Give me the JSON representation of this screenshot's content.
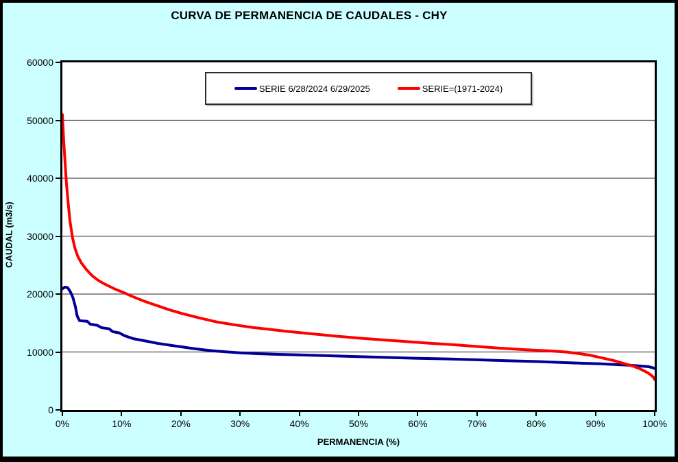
{
  "chart_data": {
    "type": "line",
    "title": "CURVA DE PERMANENCIA DE CAUDALES - CHY",
    "xlabel": "PERMANENCIA (%)",
    "ylabel": "CAUDAL (m3/s)",
    "xlim": [
      0,
      100
    ],
    "ylim": [
      0,
      60000
    ],
    "grid": "horizontal",
    "legend_position": "top-center",
    "background_color": "#CCFFFF",
    "plot_background": "#FFFFFF",
    "grid_color": "#4D4D4D",
    "x_ticks": [
      {
        "v": 0,
        "label": "0%"
      },
      {
        "v": 10,
        "label": "10%"
      },
      {
        "v": 20,
        "label": "20%"
      },
      {
        "v": 30,
        "label": "30%"
      },
      {
        "v": 40,
        "label": "40%"
      },
      {
        "v": 50,
        "label": "50%"
      },
      {
        "v": 60,
        "label": "60%"
      },
      {
        "v": 70,
        "label": "70%"
      },
      {
        "v": 80,
        "label": "80%"
      },
      {
        "v": 90,
        "label": "90%"
      },
      {
        "v": 100,
        "label": "100%"
      }
    ],
    "y_ticks": [
      {
        "v": 0,
        "label": "0"
      },
      {
        "v": 10000,
        "label": "10000"
      },
      {
        "v": 20000,
        "label": "20000"
      },
      {
        "v": 30000,
        "label": "30000"
      },
      {
        "v": 40000,
        "label": "40000"
      },
      {
        "v": 50000,
        "label": "50000"
      },
      {
        "v": 60000,
        "label": "60000"
      }
    ],
    "series": [
      {
        "name": "SERIE 6/28/2024 6/29/2025",
        "color": "#000099",
        "points": [
          [
            0,
            20900
          ],
          [
            0.4,
            21200
          ],
          [
            0.9,
            21100
          ],
          [
            1.4,
            20300
          ],
          [
            1.8,
            19300
          ],
          [
            2.2,
            17800
          ],
          [
            2.5,
            16200
          ],
          [
            2.9,
            15400
          ],
          [
            4.2,
            15300
          ],
          [
            4.7,
            14800
          ],
          [
            5.9,
            14600
          ],
          [
            6.6,
            14200
          ],
          [
            7.9,
            14000
          ],
          [
            8.5,
            13500
          ],
          [
            9.6,
            13300
          ],
          [
            10.5,
            12800
          ],
          [
            12,
            12300
          ],
          [
            14,
            11900
          ],
          [
            16,
            11500
          ],
          [
            18,
            11200
          ],
          [
            20,
            10900
          ],
          [
            22,
            10600
          ],
          [
            24,
            10350
          ],
          [
            26,
            10150
          ],
          [
            28,
            10000
          ],
          [
            30,
            9850
          ],
          [
            33,
            9700
          ],
          [
            36,
            9600
          ],
          [
            40,
            9500
          ],
          [
            45,
            9350
          ],
          [
            50,
            9200
          ],
          [
            55,
            9050
          ],
          [
            60,
            8900
          ],
          [
            65,
            8800
          ],
          [
            70,
            8650
          ],
          [
            75,
            8500
          ],
          [
            80,
            8350
          ],
          [
            84,
            8200
          ],
          [
            88,
            8050
          ],
          [
            91,
            7950
          ],
          [
            94,
            7800
          ],
          [
            96,
            7700
          ],
          [
            98,
            7550
          ],
          [
            99,
            7450
          ],
          [
            99.6,
            7300
          ],
          [
            100,
            7150
          ]
        ]
      },
      {
        "name": "SERIE=(1971-2024)",
        "color": "#FF0000",
        "points": [
          [
            0,
            51000
          ],
          [
            0.2,
            47000
          ],
          [
            0.4,
            43500
          ],
          [
            0.7,
            39000
          ],
          [
            1,
            35500
          ],
          [
            1.3,
            32500
          ],
          [
            1.7,
            29800
          ],
          [
            2.1,
            28000
          ],
          [
            2.6,
            26500
          ],
          [
            3.2,
            25400
          ],
          [
            4,
            24300
          ],
          [
            5,
            23200
          ],
          [
            6,
            22400
          ],
          [
            7,
            21800
          ],
          [
            8,
            21300
          ],
          [
            9,
            20800
          ],
          [
            10,
            20400
          ],
          [
            12,
            19500
          ],
          [
            14,
            18700
          ],
          [
            16,
            18000
          ],
          [
            18,
            17300
          ],
          [
            20,
            16700
          ],
          [
            23,
            15900
          ],
          [
            26,
            15200
          ],
          [
            29,
            14700
          ],
          [
            32,
            14250
          ],
          [
            35,
            13900
          ],
          [
            38,
            13550
          ],
          [
            42,
            13150
          ],
          [
            46,
            12750
          ],
          [
            50,
            12400
          ],
          [
            54,
            12100
          ],
          [
            58,
            11800
          ],
          [
            62,
            11500
          ],
          [
            66,
            11250
          ],
          [
            70,
            10950
          ],
          [
            74,
            10650
          ],
          [
            78,
            10400
          ],
          [
            82,
            10200
          ],
          [
            85,
            10000
          ],
          [
            87,
            9750
          ],
          [
            89,
            9450
          ],
          [
            91,
            9000
          ],
          [
            93,
            8550
          ],
          [
            94.5,
            8100
          ],
          [
            95.5,
            7800
          ],
          [
            96.5,
            7500
          ],
          [
            97.5,
            7100
          ],
          [
            98.3,
            6700
          ],
          [
            99,
            6300
          ],
          [
            99.5,
            5900
          ],
          [
            99.8,
            5600
          ],
          [
            100,
            5250
          ]
        ]
      }
    ]
  }
}
